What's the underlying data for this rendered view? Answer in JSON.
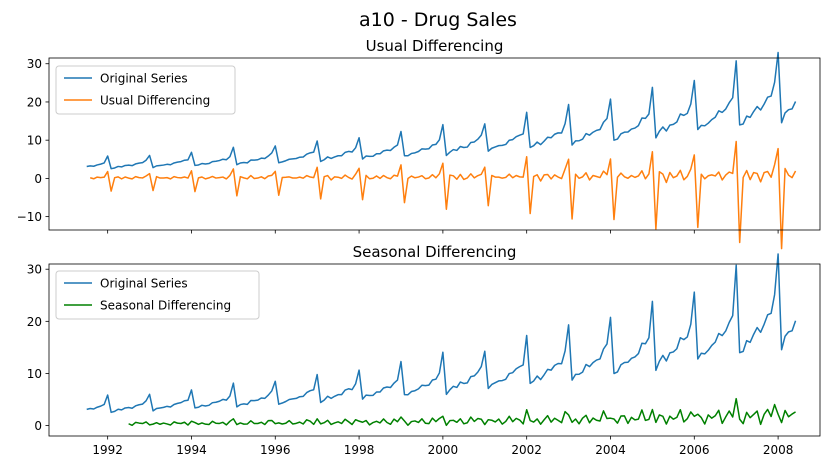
{
  "figure": {
    "title": "a10 - Drug Sales"
  },
  "colors": {
    "original": "#1f77b4",
    "usual_diff": "#ff7f0e",
    "seasonal_diff": "#008000"
  },
  "chart_data": [
    {
      "type": "line",
      "title": "Usual Differencing",
      "xlabel": "",
      "ylabel": "",
      "xlim": [
        1990.6,
        2009.0
      ],
      "ylim": [
        -13.5,
        31.5
      ],
      "yticks": [
        -10,
        0,
        10,
        20,
        30
      ],
      "ytick_labels": [
        "−10",
        "0",
        "10",
        "20",
        "30"
      ],
      "xticks": [
        1992,
        1994,
        1996,
        1998,
        2000,
        2002,
        2004,
        2006,
        2008
      ],
      "xtick_labels": [],
      "x_start": 1991.5,
      "x_step": 0.0833333,
      "grid": false,
      "legend": "top-left",
      "series": [
        {
          "name": "Original Series",
          "color_key": "original",
          "values": []
        },
        {
          "name": "Usual Differencing",
          "color_key": "usual_diff",
          "values": []
        }
      ]
    },
    {
      "type": "line",
      "title": "Seasonal Differencing",
      "xlabel": "",
      "ylabel": "",
      "xlim": [
        1990.6,
        2009.0
      ],
      "ylim": [
        -2.0,
        31.0
      ],
      "yticks": [
        0,
        10,
        20,
        30
      ],
      "ytick_labels": [
        "0",
        "10",
        "20",
        "30"
      ],
      "xticks": [
        1992,
        1994,
        1996,
        1998,
        2000,
        2002,
        2004,
        2006,
        2008
      ],
      "xtick_labels": [
        "1992",
        "1994",
        "1996",
        "1998",
        "2000",
        "2002",
        "2004",
        "2006",
        "2008"
      ],
      "x_start": 1991.5,
      "x_step": 0.0833333,
      "grid": false,
      "legend": "top-left",
      "series": [
        {
          "name": "Original Series",
          "color_key": "original",
          "values": []
        },
        {
          "name": "Seasonal Differencing",
          "color_key": "seasonal_diff",
          "values": []
        }
      ]
    }
  ]
}
